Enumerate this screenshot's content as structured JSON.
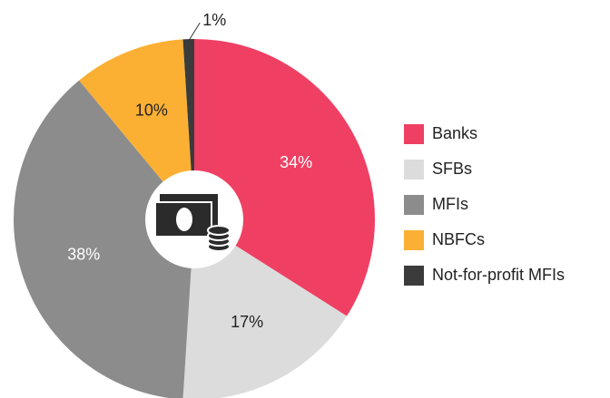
{
  "chart_data": {
    "type": "donut",
    "categories": [
      "Banks",
      "SFBs",
      "MFIs",
      "NBFCs",
      "Not-for-profit MFIs"
    ],
    "values": [
      34,
      17,
      38,
      10,
      1
    ],
    "value_labels": [
      "34%",
      "17%",
      "38%",
      "10%",
      "1%"
    ],
    "colors": [
      "#ef4063",
      "#dcdcdc",
      "#8c8c8c",
      "#fbb034",
      "#3b3b3b"
    ],
    "legend": "right"
  }
}
